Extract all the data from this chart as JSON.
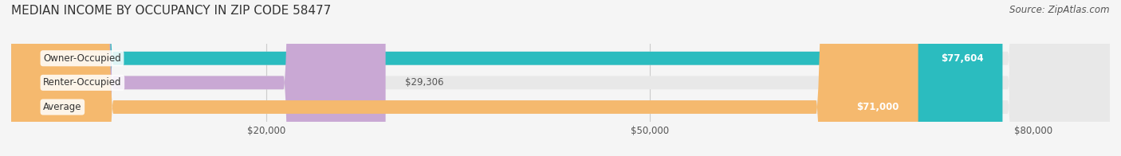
{
  "title": "MEDIAN INCOME BY OCCUPANCY IN ZIP CODE 58477",
  "source": "Source: ZipAtlas.com",
  "categories": [
    "Owner-Occupied",
    "Renter-Occupied",
    "Average"
  ],
  "values": [
    77604,
    29306,
    71000
  ],
  "bar_colors": [
    "#2bbcbf",
    "#c9a8d4",
    "#f5b96e"
  ],
  "label_colors": [
    "#ffffff",
    "#555555",
    "#ffffff"
  ],
  "value_labels": [
    "$77,604",
    "$29,306",
    "$71,000"
  ],
  "x_ticks": [
    20000,
    50000,
    80000
  ],
  "x_tick_labels": [
    "$20,000",
    "$50,000",
    "$80,000"
  ],
  "xlim": [
    0,
    86000
  ],
  "bg_color": "#f5f5f5",
  "bar_bg_color": "#e8e8e8",
  "title_fontsize": 11,
  "source_fontsize": 8.5,
  "label_fontsize": 8.5,
  "value_fontsize": 8.5,
  "tick_fontsize": 8.5
}
